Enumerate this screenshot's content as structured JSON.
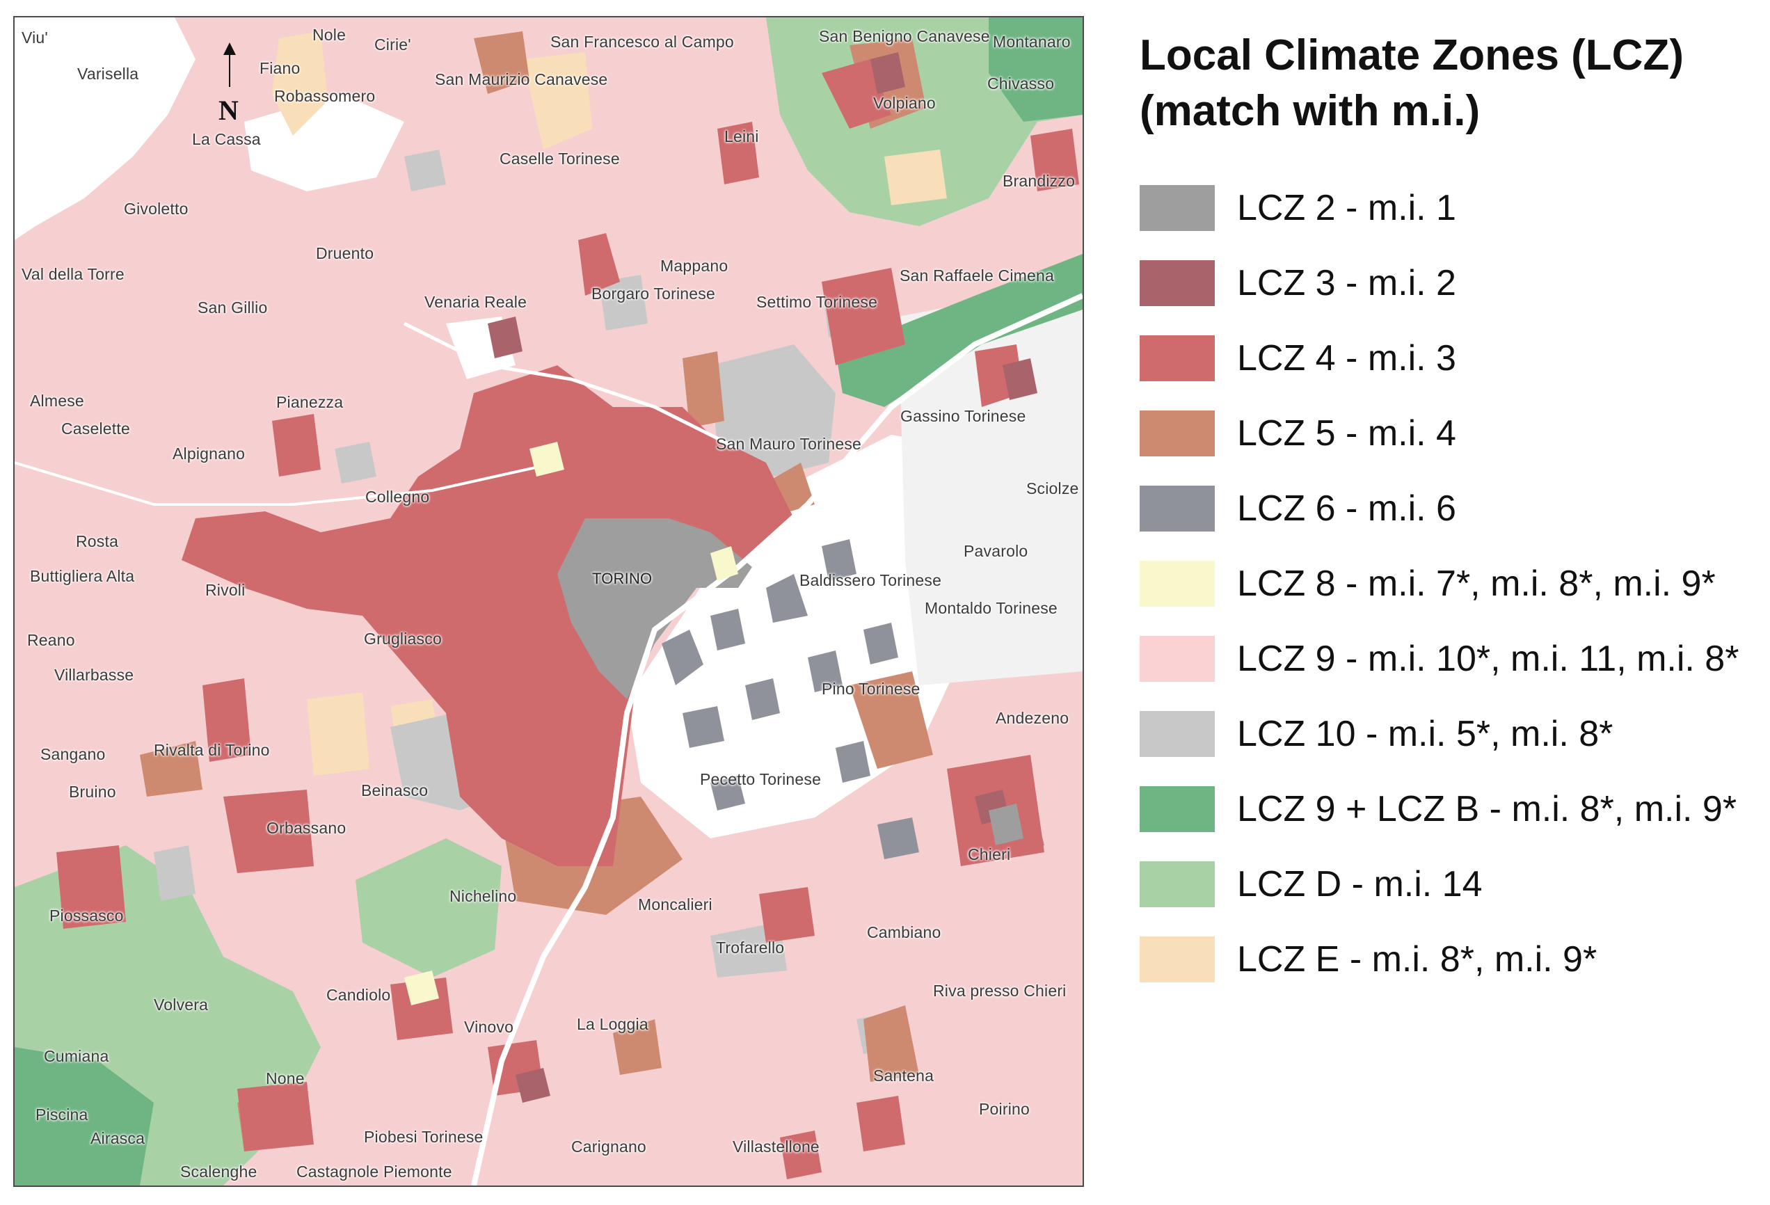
{
  "legend": {
    "title_line1": "Local Climate Zones (LCZ)",
    "title_line2": "(match with m.i.)",
    "items": [
      {
        "label": "LCZ 2 - m.i. 1",
        "color": "#9e9e9f"
      },
      {
        "label": "LCZ 3 - m.i. 2",
        "color": "#a9636a"
      },
      {
        "label": "LCZ 4 - m.i. 3",
        "color": "#cf6a6d"
      },
      {
        "label": "LCZ 5 - m.i. 4",
        "color": "#cd8a70"
      },
      {
        "label": "LCZ 6 - m.i. 6",
        "color": "#8f929b"
      },
      {
        "label": "LCZ 8 - m.i. 7*, m.i. 8*, m.i. 9*",
        "color": "#f8f8cc"
      },
      {
        "label": "LCZ 9 - m.i. 10*, m.i. 11, m.i. 8*",
        "color": "#fad2d3"
      },
      {
        "label": "LCZ 10 - m.i. 5*, m.i. 8*",
        "color": "#c8c8c8"
      },
      {
        "label": "LCZ 9 + LCZ B - m.i. 8*, m.i. 9*",
        "color": "#6fb583"
      },
      {
        "label": "LCZ D - m.i. 14",
        "color": "#a9d1a6"
      },
      {
        "label": "LCZ E - m.i. 8*, m.i. 9*",
        "color": "#f9dfb9"
      }
    ]
  },
  "north_arrow": {
    "label": "N"
  },
  "places": [
    "Viu'",
    "Varisella",
    "Nole",
    "Cirie'",
    "Fiano",
    "Robassomero",
    "San Francesco al Campo",
    "San Maurizio Canavese",
    "San Benigno Canavese",
    "Montanaro",
    "Chivasso",
    "Volpiano",
    "La Cassa",
    "Caselle Torinese",
    "Leini",
    "Brandizzo",
    "Givoletto",
    "Druento",
    "Val della Torre",
    "Mappano",
    "San Raffaele Cimena",
    "Borgaro Torinese",
    "San Gillio",
    "Venaria Reale",
    "Settimo Torinese",
    "Pianezza",
    "Almese",
    "Caselette",
    "Gassino Torinese",
    "Alpignano",
    "San Mauro Torinese",
    "Collegno",
    "Sciolze",
    "Rosta",
    "Pavarolo",
    "Buttigliera Alta",
    "Rivoli",
    "TORINO",
    "Baldissero Torinese",
    "Montaldo Torinese",
    "Reano",
    "Grugliasco",
    "Villarbasse",
    "Pino Torinese",
    "Andezeno",
    "Sangano",
    "Rivalta di Torino",
    "Bruino",
    "Pecetto Torinese",
    "Beinasco",
    "Orbassano",
    "Chieri",
    "Nichelino",
    "Piossasco",
    "Moncalieri",
    "Cambiano",
    "Trofarello",
    "Candiolo",
    "Riva presso Chieri",
    "Volvera",
    "Vinovo",
    "La Loggia",
    "Cumiana",
    "None",
    "Santena",
    "Poirino",
    "Piscina",
    "Airasca",
    "Piobesi Torinese",
    "Carignano",
    "Villastellone",
    "Scalenghe",
    "Castagnole Piemonte"
  ]
}
